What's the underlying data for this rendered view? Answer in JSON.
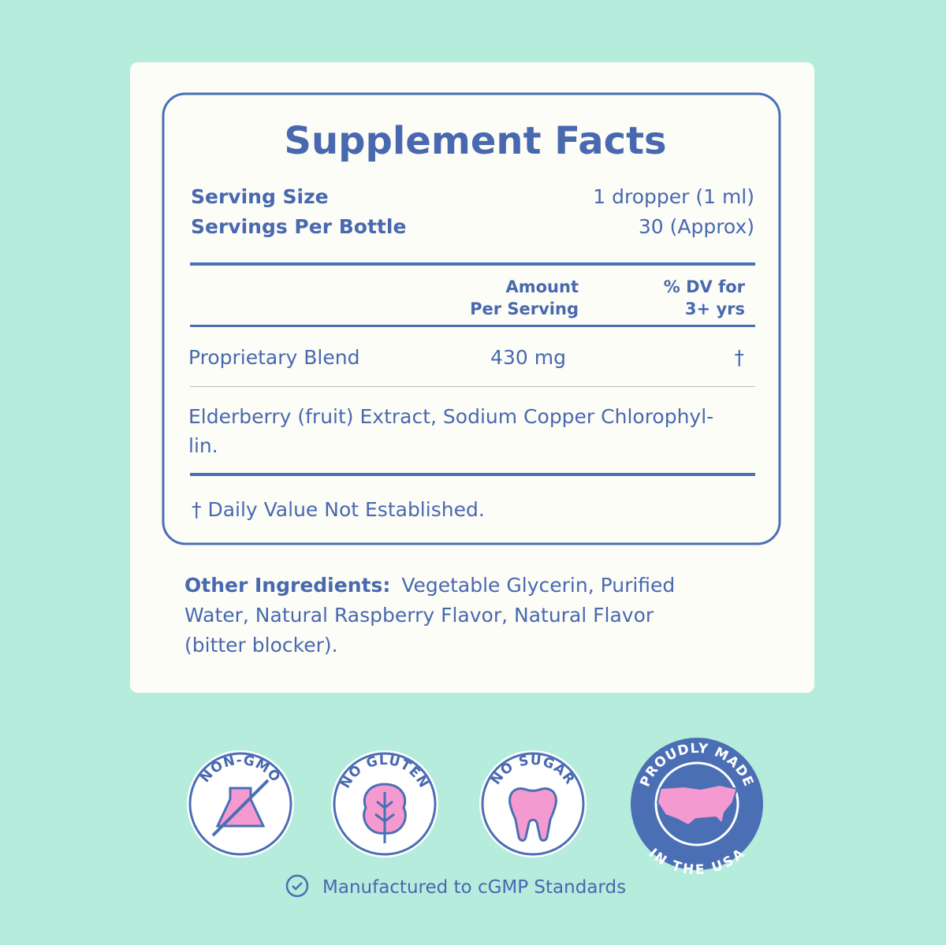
{
  "panel": {
    "title": "Supplement Facts",
    "serving": [
      {
        "label": "Serving Size",
        "value": "1 dropper (1 ml)"
      },
      {
        "label": "Servings Per Bottle",
        "value": "30 (Approx)"
      }
    ],
    "header": {
      "amount": [
        "Amount",
        "Per Serving"
      ],
      "dv": [
        "% DV for",
        "3+ yrs"
      ]
    },
    "row": {
      "name": "Proprietary Blend",
      "amount": "430 mg",
      "dv": "†"
    },
    "ingredients": [
      "Elderberry (fruit) Extract, Sodium Copper Chlorophyl-",
      "lin."
    ],
    "footnote": "† Daily Value Not Established."
  },
  "other": {
    "label": "Other Ingredients:",
    "lines": [
      "Vegetable Glycerin, Purified",
      "Water, Natural Raspberry Flavor, Natural Flavor",
      "(bitter blocker)."
    ]
  },
  "badges": [
    "NON-GMO",
    "NO GLUTEN",
    "NO SUGAR"
  ],
  "made": {
    "top": "PROUDLY MADE",
    "bottom": "IN THE USA"
  },
  "footer": "Manufactured to cGMP Standards"
}
